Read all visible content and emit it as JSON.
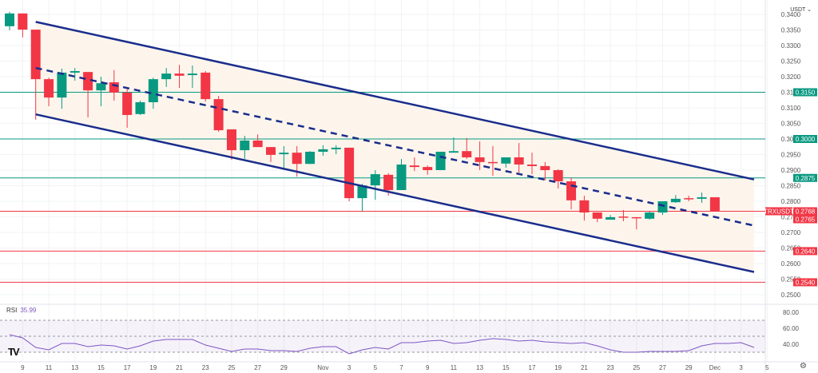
{
  "symbol_label": "TRXUSDT",
  "currency": "USDT",
  "currency_dropdown_icon": "chevron-down-icon",
  "rsi": {
    "label": "RSI",
    "value": "35.99",
    "axis_ticks": [
      "80.00",
      "60.00",
      "40.00"
    ],
    "band": [
      30,
      70
    ],
    "values": [
      52,
      48,
      36,
      33,
      41,
      41,
      37,
      39,
      38,
      34,
      38,
      44,
      46,
      46,
      46,
      39,
      35,
      31,
      34,
      34,
      32,
      32,
      31,
      35,
      37,
      37,
      28,
      33,
      36,
      34,
      42,
      42,
      44,
      45,
      41,
      42,
      45,
      47,
      46,
      44,
      45,
      43,
      42,
      41,
      42,
      38,
      33,
      30,
      30,
      31,
      31,
      31,
      32,
      38,
      41,
      41,
      42,
      36
    ]
  },
  "colors": {
    "up": "#089981",
    "down": "#f23645",
    "channel": "#1a2d8c",
    "rsi": "#7e57c2",
    "support_green": "#089981",
    "support_red": "#f23645",
    "channel_fill": "#fdf5ec"
  },
  "chart_data": {
    "type": "candlestick",
    "title": "",
    "ylim": [
      0.247,
      0.3445
    ],
    "y_ticks": [
      "0.3400",
      "0.3350",
      "0.3300",
      "0.3250",
      "0.3200",
      "0.3150",
      "0.3100",
      "0.3050",
      "0.3000",
      "0.2950",
      "0.2900",
      "0.2850",
      "0.2800",
      "0.2750",
      "0.2700",
      "0.2650",
      "0.2600",
      "0.2550",
      "0.2500"
    ],
    "x_tick_labels": [
      {
        "i": 1,
        "t": "9"
      },
      {
        "i": 3,
        "t": "11"
      },
      {
        "i": 5,
        "t": "13"
      },
      {
        "i": 7,
        "t": "15"
      },
      {
        "i": 9,
        "t": "17"
      },
      {
        "i": 11,
        "t": "19"
      },
      {
        "i": 13,
        "t": "21"
      },
      {
        "i": 15,
        "t": "23"
      },
      {
        "i": 17,
        "t": "25"
      },
      {
        "i": 19,
        "t": "27"
      },
      {
        "i": 21,
        "t": "29"
      },
      {
        "i": 24,
        "t": "Nov"
      },
      {
        "i": 26,
        "t": "3"
      },
      {
        "i": 28,
        "t": "5"
      },
      {
        "i": 30,
        "t": "7"
      },
      {
        "i": 32,
        "t": "9"
      },
      {
        "i": 34,
        "t": "11"
      },
      {
        "i": 36,
        "t": "13"
      },
      {
        "i": 38,
        "t": "15"
      },
      {
        "i": 40,
        "t": "17"
      },
      {
        "i": 42,
        "t": "19"
      },
      {
        "i": 44,
        "t": "21"
      },
      {
        "i": 46,
        "t": "23"
      },
      {
        "i": 48,
        "t": "25"
      },
      {
        "i": 50,
        "t": "27"
      },
      {
        "i": 52,
        "t": "29"
      },
      {
        "i": 54,
        "t": "Dec"
      },
      {
        "i": 56,
        "t": "3"
      },
      {
        "i": 58,
        "t": "5"
      }
    ],
    "ohlc": [
      [
        0.3362,
        0.3408,
        0.3349,
        0.3403
      ],
      [
        0.3403,
        0.3403,
        0.3326,
        0.3351
      ],
      [
        0.3351,
        0.3351,
        0.3062,
        0.3192
      ],
      [
        0.3192,
        0.3197,
        0.3105,
        0.3133
      ],
      [
        0.3133,
        0.3226,
        0.3097,
        0.3213
      ],
      [
        0.3213,
        0.3228,
        0.3187,
        0.3218
      ],
      [
        0.3215,
        0.3215,
        0.3069,
        0.3156
      ],
      [
        0.3156,
        0.32,
        0.3105,
        0.3179
      ],
      [
        0.3182,
        0.3221,
        0.3123,
        0.3149
      ],
      [
        0.3149,
        0.3167,
        0.3036,
        0.3077
      ],
      [
        0.308,
        0.3123,
        0.3077,
        0.3118
      ],
      [
        0.3118,
        0.3197,
        0.3097,
        0.3192
      ],
      [
        0.3192,
        0.3228,
        0.3167,
        0.321
      ],
      [
        0.321,
        0.3238,
        0.3164,
        0.3203
      ],
      [
        0.3205,
        0.3236,
        0.3164,
        0.321
      ],
      [
        0.3213,
        0.3218,
        0.312,
        0.3128
      ],
      [
        0.3128,
        0.3138,
        0.3023,
        0.3028
      ],
      [
        0.3031,
        0.3031,
        0.2933,
        0.2964
      ],
      [
        0.2964,
        0.301,
        0.2936,
        0.2995
      ],
      [
        0.2995,
        0.3015,
        0.2974,
        0.2974
      ],
      [
        0.2974,
        0.2974,
        0.2926,
        0.2949
      ],
      [
        0.2951,
        0.2977,
        0.2903,
        0.2956
      ],
      [
        0.2956,
        0.2977,
        0.2879,
        0.292
      ],
      [
        0.292,
        0.2961,
        0.292,
        0.2959
      ],
      [
        0.2959,
        0.298,
        0.2946,
        0.2967
      ],
      [
        0.2967,
        0.298,
        0.2951,
        0.2972
      ],
      [
        0.2972,
        0.2972,
        0.28,
        0.281
      ],
      [
        0.281,
        0.2856,
        0.2767,
        0.2851
      ],
      [
        0.2851,
        0.29,
        0.2805,
        0.2887
      ],
      [
        0.2885,
        0.289,
        0.2818,
        0.2836
      ],
      [
        0.2836,
        0.2936,
        0.2836,
        0.2918
      ],
      [
        0.2915,
        0.2941,
        0.2897,
        0.291
      ],
      [
        0.291,
        0.2915,
        0.2885,
        0.29
      ],
      [
        0.29,
        0.2959,
        0.29,
        0.2959
      ],
      [
        0.2956,
        0.3005,
        0.2956,
        0.2961
      ],
      [
        0.2961,
        0.3003,
        0.2936,
        0.2941
      ],
      [
        0.2941,
        0.2992,
        0.29,
        0.2926
      ],
      [
        0.2926,
        0.2977,
        0.2882,
        0.2923
      ],
      [
        0.2921,
        0.2941,
        0.2908,
        0.2941
      ],
      [
        0.2941,
        0.2987,
        0.2892,
        0.2918
      ],
      [
        0.2918,
        0.2956,
        0.2887,
        0.2913
      ],
      [
        0.2913,
        0.2926,
        0.2867,
        0.29
      ],
      [
        0.29,
        0.2903,
        0.2841,
        0.2864
      ],
      [
        0.2864,
        0.2877,
        0.2774,
        0.2803
      ],
      [
        0.2803,
        0.2818,
        0.2738,
        0.2764
      ],
      [
        0.2764,
        0.2764,
        0.2733,
        0.2744
      ],
      [
        0.2741,
        0.2756,
        0.2741,
        0.2749
      ],
      [
        0.2751,
        0.2772,
        0.2736,
        0.2749
      ],
      [
        0.2749,
        0.2749,
        0.271,
        0.2746
      ],
      [
        0.2744,
        0.2767,
        0.2741,
        0.2764
      ],
      [
        0.2764,
        0.28,
        0.2756,
        0.28
      ],
      [
        0.2797,
        0.282,
        0.2795,
        0.2808
      ],
      [
        0.281,
        0.2818,
        0.28,
        0.2808
      ],
      [
        0.2808,
        0.2828,
        0.2795,
        0.2813
      ],
      [
        0.2813,
        0.2813,
        0.2768,
        0.2768
      ]
    ],
    "levels": [
      {
        "value": "0.3150",
        "kind": "resistance"
      },
      {
        "value": "0.3000",
        "kind": "resistance"
      },
      {
        "value": "0.2875",
        "kind": "resistance"
      },
      {
        "value": "0.2640",
        "kind": "support"
      },
      {
        "value": "0.2540",
        "kind": "support"
      }
    ],
    "last_price": "0.2768",
    "last_price_second": "0.2765",
    "channel": {
      "upper": [
        [
          2,
          0.3376
        ],
        [
          57,
          0.287
        ]
      ],
      "lower": [
        [
          2,
          0.3079
        ],
        [
          57,
          0.2573
        ]
      ],
      "mid": [
        [
          2,
          0.3228
        ],
        [
          57,
          0.2722
        ]
      ]
    }
  }
}
